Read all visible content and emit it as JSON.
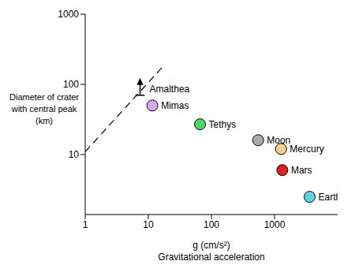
{
  "chart_data": {
    "type": "scatter",
    "x_label": [
      "g (cm/s²)",
      "Gravitational acceleration"
    ],
    "y_label": [
      "Diameter of crater",
      "with central peak",
      "(km)"
    ],
    "log": true,
    "grid": false,
    "xlim": [
      1,
      10000
    ],
    "xticks": [
      1,
      10,
      100,
      1000
    ],
    "ylim": [
      1.4,
      1000
    ],
    "yticks": [
      10,
      100,
      1000
    ],
    "series": [
      {
        "type": "line",
        "line_style": "dashed",
        "color": "#000000",
        "x": [
          1,
          18
        ],
        "values": [
          11,
          190
        ]
      },
      {
        "name": "Amalthea",
        "marker": "arrow_up",
        "color": "#000000",
        "x": [
          7.4
        ],
        "values": [
          70
        ]
      },
      {
        "name": "Mimas",
        "marker": "circle",
        "color": "#d9a8f0",
        "x": [
          11.6
        ],
        "values": [
          50
        ]
      },
      {
        "name": "Tethys",
        "marker": "circle",
        "color": "#4cd964",
        "x": [
          66
        ],
        "values": [
          27
        ]
      },
      {
        "name": "Moon",
        "marker": "circle",
        "color": "#aaaaaa",
        "x": [
          550
        ],
        "values": [
          16
        ]
      },
      {
        "name": "Mercury",
        "marker": "circle",
        "color": "#f7d08a",
        "x": [
          1270
        ],
        "values": [
          12
        ]
      },
      {
        "name": "Mars",
        "marker": "circle",
        "color": "#e0201b",
        "x": [
          1330
        ],
        "values": [
          6
        ]
      },
      {
        "name": "Earth",
        "marker": "circle",
        "color": "#5bd6e0",
        "x": [
          3600
        ],
        "values": [
          2.5
        ]
      }
    ]
  }
}
